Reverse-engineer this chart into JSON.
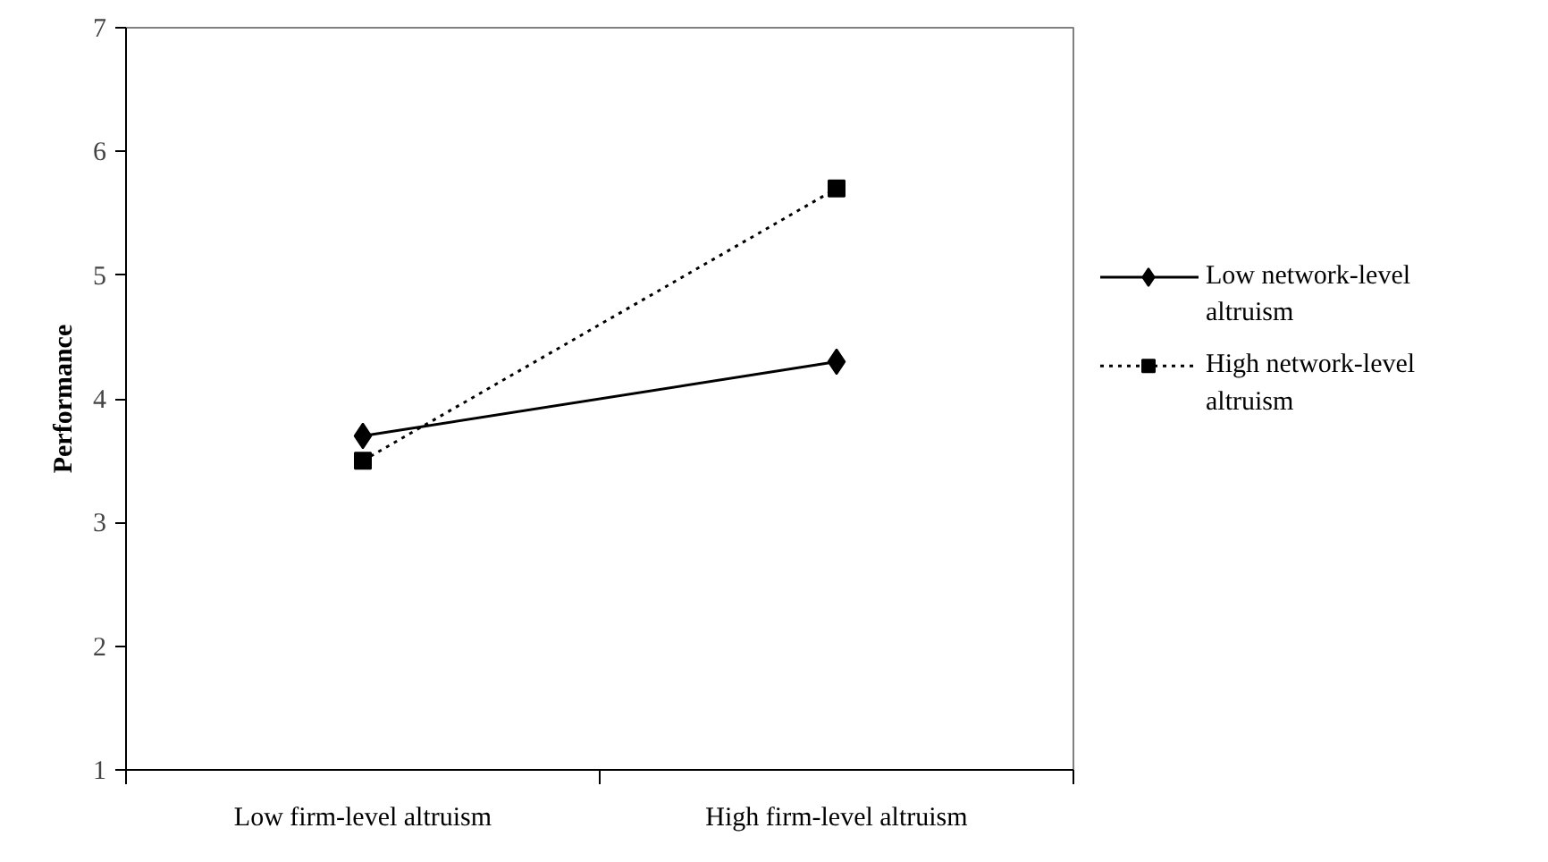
{
  "chart_data": {
    "type": "line",
    "ylabel": "Performance",
    "categories": [
      "Low firm-level altruism",
      "High firm-level altruism"
    ],
    "series": [
      {
        "name": "Low network-level altruism",
        "color": "#000000",
        "values": [
          3.7,
          4.3
        ],
        "marker": "diamond",
        "line_style": "solid"
      },
      {
        "name": "High network-level altruism",
        "color": "#000000",
        "values": [
          3.5,
          5.7
        ],
        "marker": "square",
        "line_style": "dotted"
      }
    ],
    "ylim": [
      1,
      7
    ],
    "yticks": [
      1,
      2,
      3,
      4,
      5,
      6,
      7
    ],
    "grid": false,
    "legend": "right"
  }
}
